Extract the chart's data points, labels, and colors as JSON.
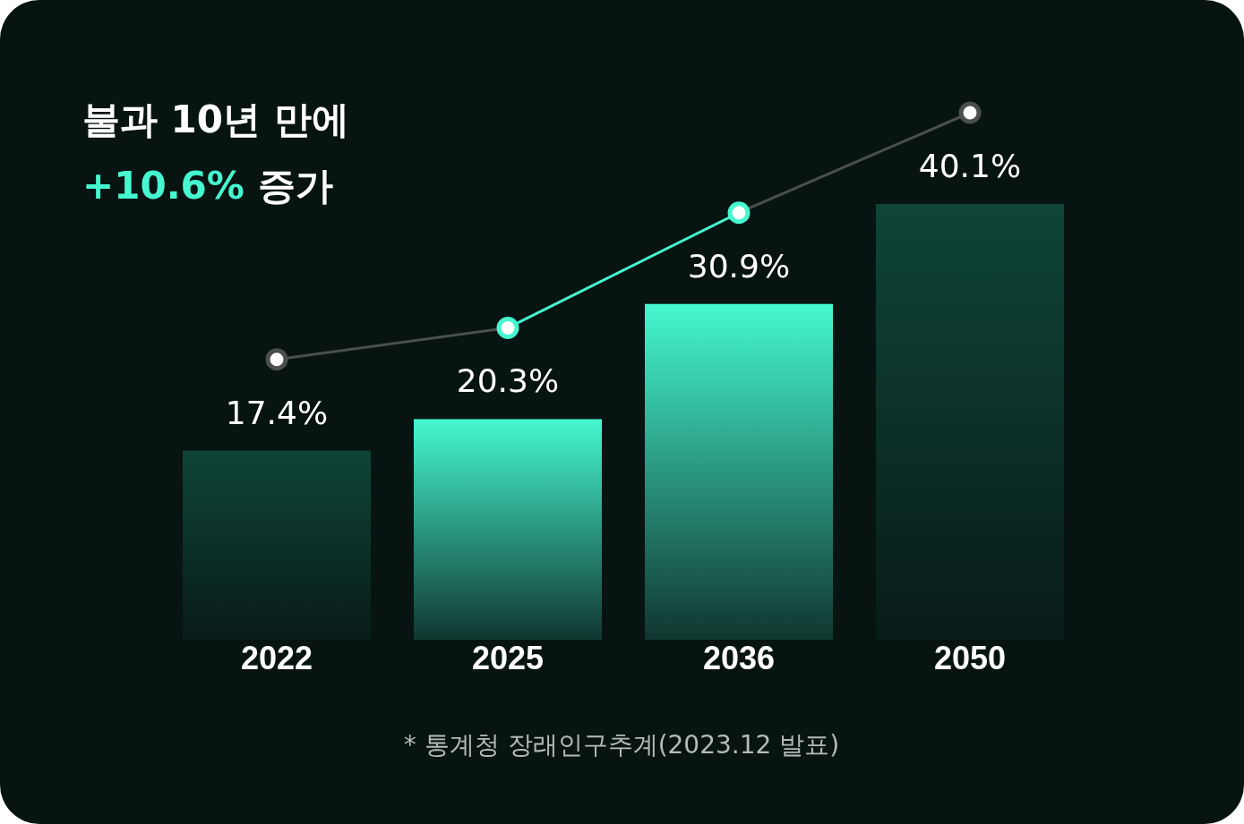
{
  "chart_data": {
    "type": "bar",
    "title": "불과 10년 만에",
    "subtitle": "+10.6% 증가",
    "categories": [
      "2022",
      "2025",
      "2036",
      "2050"
    ],
    "series": [
      {
        "colors": [
          "#0f4538",
          "#45f8d0",
          "#45f8d0",
          "#0f4538"
        ],
        "values": [
          17.4,
          20.3,
          30.9,
          40.1
        ],
        "value_labels": [
          "17.4%",
          "20.3%",
          "30.9%",
          "40.1%"
        ]
      }
    ],
    "tick_labels": "x",
    "annotations": [
      "* 통계청 장래인구추계(2023.12 발표)"
    ]
  }
}
